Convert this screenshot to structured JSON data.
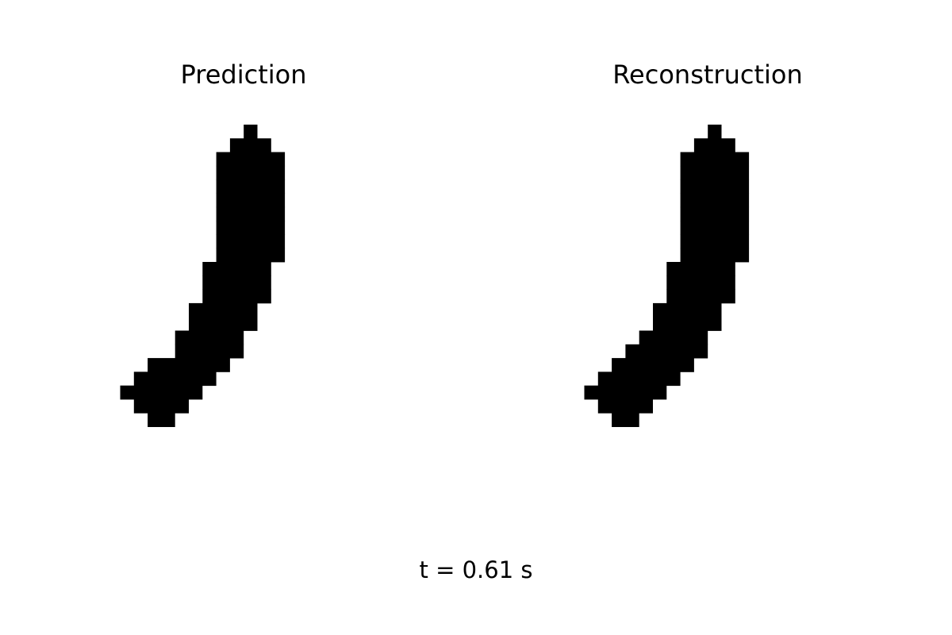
{
  "panels": [
    {
      "title": "Prediction",
      "grid": [
        [
          9,
          9
        ],
        [
          8,
          10
        ],
        [
          7,
          11
        ],
        [
          7,
          11
        ],
        [
          7,
          11
        ],
        [
          7,
          11
        ],
        [
          7,
          11
        ],
        [
          7,
          11
        ],
        [
          7,
          11
        ],
        [
          7,
          11
        ],
        [
          6,
          10
        ],
        [
          6,
          10
        ],
        [
          6,
          10
        ],
        [
          5,
          9
        ],
        [
          5,
          9
        ],
        [
          4,
          8
        ],
        [
          4,
          8
        ],
        [
          2,
          7
        ],
        [
          1,
          6
        ],
        [
          0,
          5
        ],
        [
          1,
          4
        ],
        [
          2,
          3
        ]
      ]
    },
    {
      "title": "Reconstruction",
      "grid": [
        [
          9,
          9
        ],
        [
          8,
          10
        ],
        [
          7,
          11
        ],
        [
          7,
          11
        ],
        [
          7,
          11
        ],
        [
          7,
          11
        ],
        [
          7,
          11
        ],
        [
          7,
          11
        ],
        [
          7,
          11
        ],
        [
          7,
          11
        ],
        [
          6,
          10
        ],
        [
          6,
          10
        ],
        [
          6,
          10
        ],
        [
          5,
          9
        ],
        [
          5,
          9
        ],
        [
          4,
          8
        ],
        [
          3,
          8
        ],
        [
          2,
          7
        ],
        [
          1,
          6
        ],
        [
          0,
          5
        ],
        [
          1,
          4
        ],
        [
          2,
          3
        ]
      ]
    }
  ],
  "time_label": "t = 0.61 s",
  "pixel_color": "#000000"
}
